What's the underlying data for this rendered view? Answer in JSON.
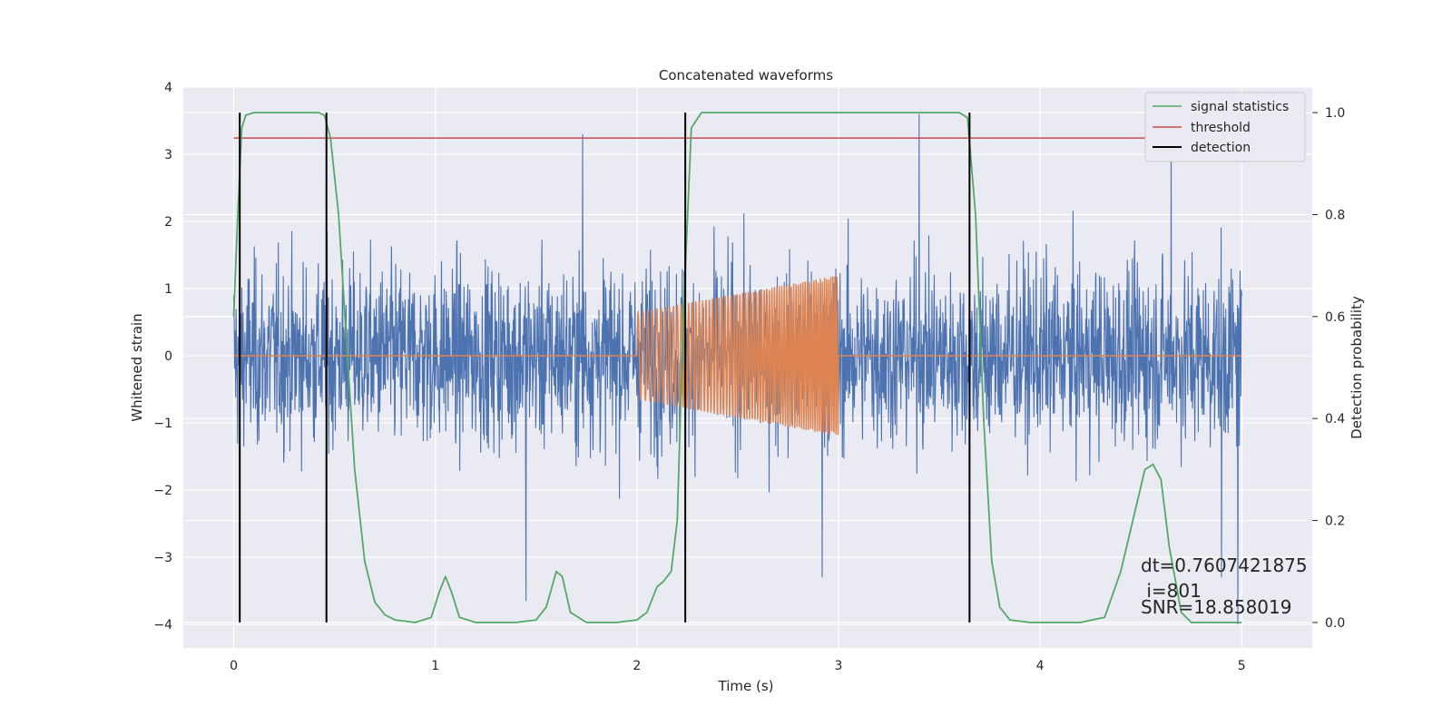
{
  "chart_data": {
    "type": "line",
    "title": "Concatenated waveforms",
    "xlabel": "Time (s)",
    "ylabel": "Whitened strain",
    "y2label": "Detection probability",
    "xlim": [
      -0.25,
      5.35
    ],
    "ylim": [
      -4.35,
      4.0
    ],
    "y2lim": [
      -0.05,
      1.05
    ],
    "x_ticks": [
      0,
      1,
      2,
      3,
      4,
      5
    ],
    "y_ticks": [
      -4,
      -3,
      -2,
      -1,
      0,
      1,
      2,
      3,
      4
    ],
    "y2_ticks": [
      0.0,
      0.2,
      0.4,
      0.6,
      0.8,
      1.0
    ],
    "y2_tick_labels": [
      "0.0",
      "0.2",
      "0.4",
      "0.6",
      "0.8",
      "1.0"
    ],
    "grid": true,
    "legend_position": "top-right",
    "colors": {
      "strain": "#4C72B0",
      "injection": "#DD8452",
      "signal_statistics": "#55A868",
      "threshold": "#C44E52",
      "detection": "#000000",
      "background": "#EAEAF2"
    },
    "series": [
      {
        "id": "strain",
        "axis": "left",
        "description_kind": "noise",
        "x_range": [
          0,
          5
        ],
        "amplitude_envelope": 2.6,
        "spikes": [
          [
            1.73,
            3.3
          ],
          [
            3.4,
            3.6
          ],
          [
            4.65,
            3.2
          ],
          [
            1.45,
            -3.65
          ],
          [
            2.92,
            -3.3
          ],
          [
            4.98,
            -4.0
          ],
          [
            4.9,
            -3.3
          ]
        ]
      },
      {
        "id": "injection",
        "axis": "left",
        "x": [
          0,
          2.0,
          2.0,
          3.0,
          3.0,
          5.0
        ],
        "amplitude": [
          0,
          0,
          0.65,
          1.2,
          0,
          0
        ]
      },
      {
        "id": "signal_statistics",
        "name": "signal statistics",
        "axis": "right",
        "x": [
          0.0,
          0.02,
          0.04,
          0.06,
          0.1,
          0.42,
          0.45,
          0.48,
          0.52,
          0.56,
          0.6,
          0.65,
          0.7,
          0.75,
          0.8,
          0.9,
          0.98,
          1.02,
          1.05,
          1.08,
          1.12,
          1.2,
          1.4,
          1.5,
          1.55,
          1.6,
          1.63,
          1.67,
          1.75,
          1.9,
          2.0,
          2.05,
          2.1,
          2.13,
          2.17,
          2.2,
          2.23,
          2.27,
          2.32,
          3.6,
          3.64,
          3.68,
          3.72,
          3.76,
          3.8,
          3.85,
          3.95,
          4.2,
          4.32,
          4.4,
          4.46,
          4.52,
          4.56,
          4.6,
          4.64,
          4.7,
          4.75,
          5.0
        ],
        "y": [
          0.6,
          0.8,
          0.97,
          0.995,
          1.0,
          1.0,
          0.995,
          0.95,
          0.8,
          0.55,
          0.3,
          0.12,
          0.04,
          0.015,
          0.005,
          0.0,
          0.01,
          0.06,
          0.09,
          0.06,
          0.01,
          0.0,
          0.0,
          0.005,
          0.03,
          0.1,
          0.09,
          0.02,
          0.0,
          0.0,
          0.005,
          0.02,
          0.07,
          0.08,
          0.1,
          0.2,
          0.6,
          0.97,
          1.0,
          1.0,
          0.99,
          0.8,
          0.4,
          0.12,
          0.03,
          0.005,
          0.0,
          0.0,
          0.01,
          0.1,
          0.2,
          0.3,
          0.31,
          0.28,
          0.15,
          0.02,
          0.0,
          0.0
        ]
      },
      {
        "id": "threshold",
        "name": "threshold",
        "axis": "right",
        "y": 0.95,
        "x_range": [
          0,
          5.05
        ]
      },
      {
        "id": "detection",
        "name": "detection",
        "axis": "right",
        "x": [
          0.03,
          0.46,
          2.24,
          3.65
        ],
        "y_range": [
          0.0,
          1.0
        ]
      }
    ],
    "legend": [
      "signal statistics",
      "threshold",
      "detection"
    ],
    "annotations": [
      "dt=0.7607421875",
      " i=801",
      "SNR=18.858019"
    ]
  }
}
